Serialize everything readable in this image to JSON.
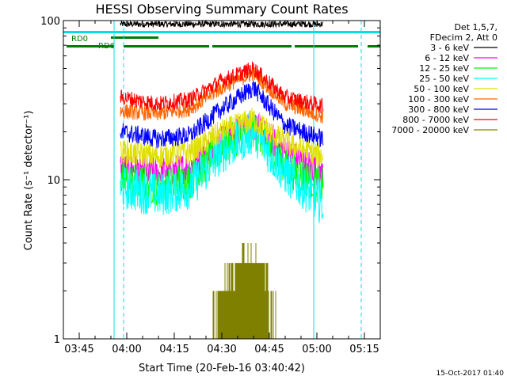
{
  "chart_data": {
    "type": "line",
    "title": "HESSI Observing Summary Count Rates",
    "xlabel": "Start Time (20-Feb-16 03:40:42)",
    "ylabel": "Count Rate (s⁻¹ detector⁻¹)",
    "yscale": "log",
    "ylim": [
      1,
      100
    ],
    "xlim": [
      "03:40",
      "05:20"
    ],
    "x_ticks": [
      "03:45",
      "04:00",
      "04:15",
      "04:30",
      "04:45",
      "05:00",
      "05:15"
    ],
    "y_ticks": [
      "1",
      "10",
      "100"
    ],
    "legend_header": [
      "Det 1,5,7,",
      "FDecim 2, Att 0"
    ],
    "legend_position": "top-right",
    "timestamp": "15-Oct-2017 01:40",
    "flags": [
      {
        "label": "RD0",
        "color": "#00e0e0"
      },
      {
        "label": "RD6",
        "color": "#007a00"
      }
    ],
    "series": [
      {
        "name": "3 - 6 keV",
        "color": "#000000",
        "x": [
          "03:58",
          "04:10",
          "04:20",
          "04:30",
          "04:40",
          "04:50",
          "05:02"
        ],
        "values": [
          95,
          95,
          95,
          95,
          95,
          95,
          95
        ]
      },
      {
        "name": "6 - 12 keV",
        "color": "#ff00ff",
        "x": [
          "03:58",
          "04:10",
          "04:20",
          "04:30",
          "04:40",
          "04:50",
          "05:02"
        ],
        "values": [
          12,
          11,
          12,
          18,
          22,
          15,
          11
        ]
      },
      {
        "name": "12 - 25 keV",
        "color": "#00ff00",
        "x": [
          "03:58",
          "04:10",
          "04:20",
          "04:30",
          "04:40",
          "04:50",
          "05:02"
        ],
        "values": [
          10,
          9,
          10,
          16,
          21,
          12,
          9
        ]
      },
      {
        "name": "25 - 50 keV",
        "color": "#00ffff",
        "x": [
          "03:58",
          "04:10",
          "04:20",
          "04:30",
          "04:40",
          "04:50",
          "05:02"
        ],
        "values": [
          9,
          8,
          9,
          15,
          20,
          11,
          7
        ]
      },
      {
        "name": "50 - 100 keV",
        "color": "#e0e000",
        "x": [
          "03:58",
          "04:10",
          "04:20",
          "04:30",
          "04:40",
          "04:50",
          "05:02"
        ],
        "values": [
          15,
          14,
          15,
          20,
          24,
          17,
          14
        ]
      },
      {
        "name": "100 - 300 keV",
        "color": "#ff6600",
        "x": [
          "03:58",
          "04:10",
          "04:20",
          "04:30",
          "04:40",
          "04:50",
          "05:02"
        ],
        "values": [
          27,
          26,
          28,
          38,
          47,
          30,
          25
        ]
      },
      {
        "name": "300 - 800 keV",
        "color": "#0000ff",
        "x": [
          "03:58",
          "04:10",
          "04:20",
          "04:30",
          "04:40",
          "04:50",
          "05:02"
        ],
        "values": [
          20,
          18,
          19,
          28,
          38,
          22,
          18
        ]
      },
      {
        "name": "800 - 7000 keV",
        "color": "#ff0000",
        "x": [
          "03:58",
          "04:10",
          "04:20",
          "04:30",
          "04:40",
          "04:50",
          "05:02"
        ],
        "values": [
          33,
          30,
          32,
          42,
          50,
          33,
          29
        ]
      },
      {
        "name": "7000 - 20000 keV",
        "color": "#808000",
        "x": [
          "04:27",
          "04:32",
          "04:37",
          "04:42",
          "04:47"
        ],
        "values": [
          1.5,
          2.5,
          3.5,
          3.0,
          1.5
        ]
      }
    ]
  }
}
